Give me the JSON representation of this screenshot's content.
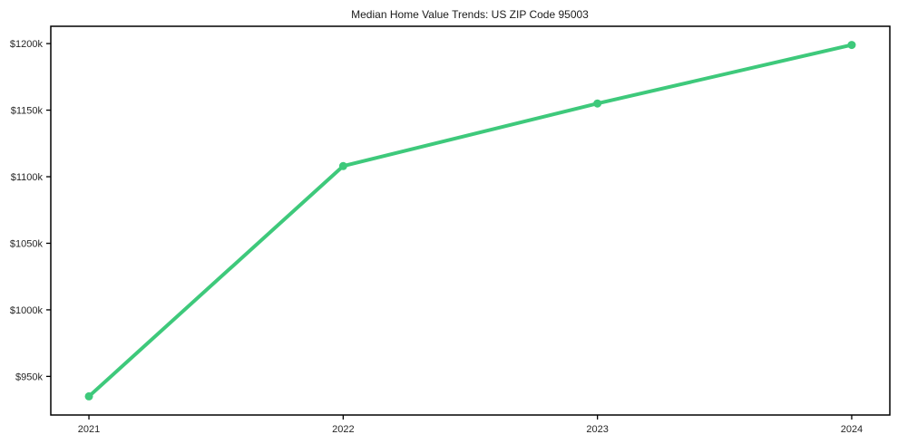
{
  "figure": {
    "background_color": "#ffffff"
  },
  "chart_data": {
    "type": "line",
    "title": "Median Home Value Trends: US ZIP Code 95003",
    "xlabel": "",
    "ylabel": "",
    "x": [
      2021,
      2022,
      2023,
      2024
    ],
    "x_tick_labels": [
      "2021",
      "2022",
      "2023",
      "2024"
    ],
    "values_usd_thousands": [
      935,
      1108,
      1155,
      1199
    ],
    "values_usd": [
      935000,
      1108000,
      1155000,
      1199000
    ],
    "y_ticks_usd_thousands": [
      950,
      1000,
      1050,
      1100,
      1150,
      1200
    ],
    "y_tick_labels": [
      "$950k",
      "$1000k",
      "$1050k",
      "$1100k",
      "$1150k",
      "$1200k"
    ],
    "xlim": [
      2020.85,
      2024.15
    ],
    "ylim_usd_thousands": [
      921,
      1213
    ],
    "grid": false,
    "legend": false,
    "style": {
      "line_color": "#3ec97b",
      "line_width": 4,
      "marker": "circle",
      "marker_radius": 4.5,
      "frame_color": "#000000",
      "tick_color": "#000000",
      "text_color": "#262626",
      "title_color": "#1a1a1a",
      "background": "#ffffff"
    }
  }
}
